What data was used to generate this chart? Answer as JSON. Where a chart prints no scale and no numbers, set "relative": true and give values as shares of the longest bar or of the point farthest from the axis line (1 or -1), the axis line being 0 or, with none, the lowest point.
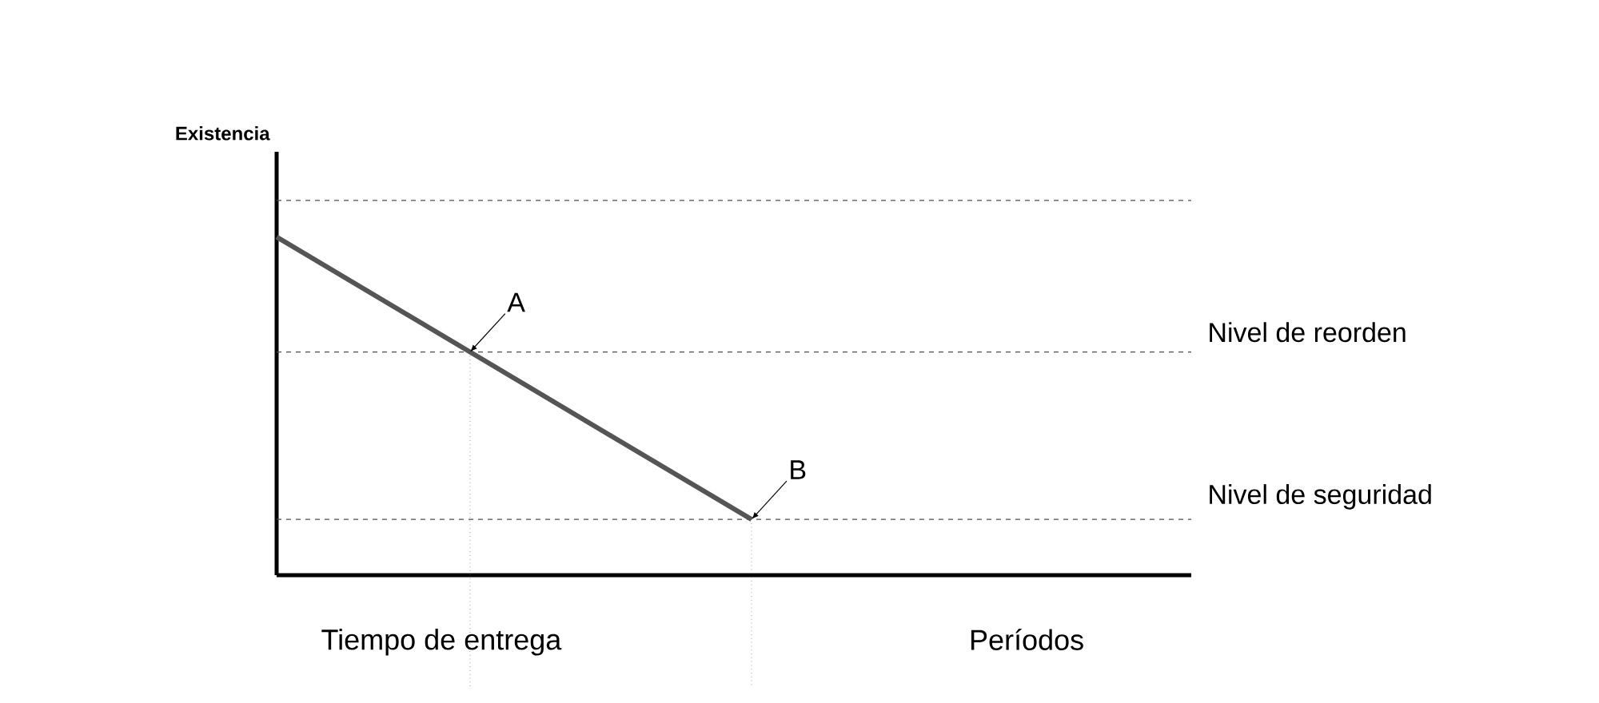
{
  "chart_data": {
    "type": "line",
    "relative": true,
    "categories": [
      null,
      null
    ],
    "values": [
      1,
      0.165
    ],
    "color": "#555555",
    "line_style": "solid",
    "xlabel": "Períodos",
    "annotations": [
      "Existencia",
      {
        "text": "A",
        "y": 0.66
      },
      {
        "text": "B",
        "y": 0.165
      },
      "Tiempo de entrega"
    ],
    "ref_lines": [
      {
        "axis": "y",
        "value": 1.108,
        "label": null,
        "line_style": "dashed"
      },
      {
        "axis": "y",
        "value": 0.66,
        "label": "Nivel de reorden",
        "line_style": "dashed"
      },
      {
        "axis": "y",
        "value": 0.165,
        "label": "Nivel de seguridad",
        "line_style": "dashed"
      }
    ]
  }
}
